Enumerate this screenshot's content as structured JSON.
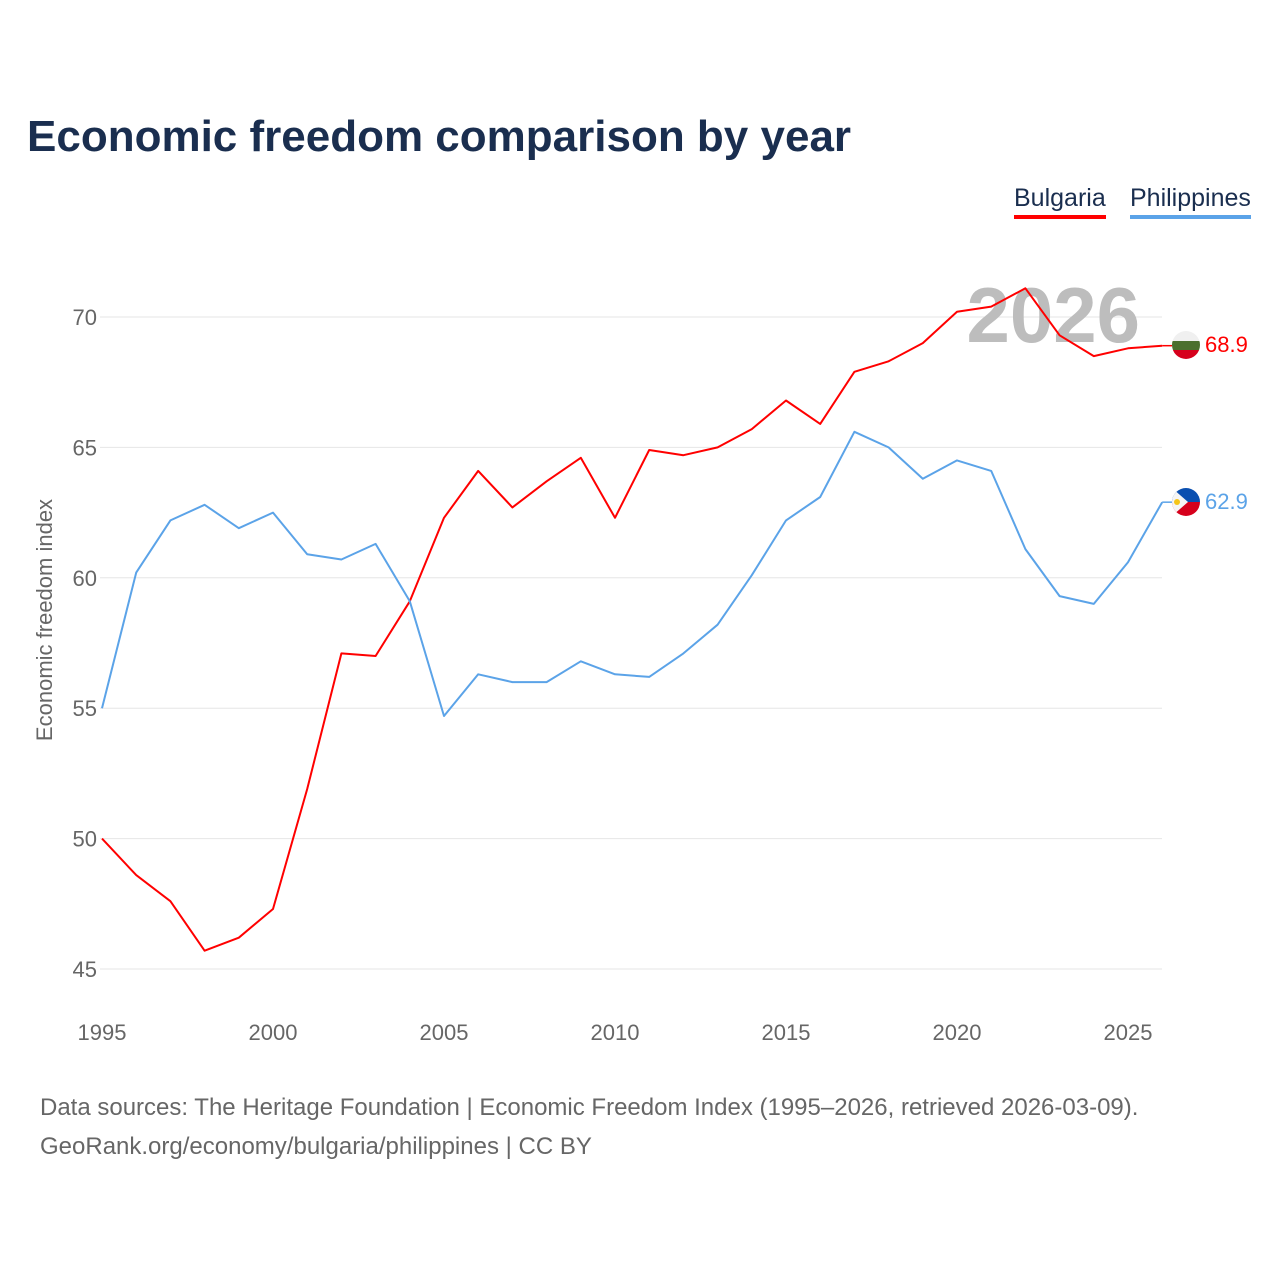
{
  "chart_data": {
    "type": "line",
    "title": "Economic freedom comparison by year",
    "xlabel": "",
    "ylabel": "Economic freedom index",
    "xlim": [
      1995,
      2026
    ],
    "ylim": [
      45,
      71.5
    ],
    "x_ticks": [
      1995,
      2000,
      2005,
      2010,
      2015,
      2020,
      2025
    ],
    "y_ticks": [
      45,
      50,
      55,
      60,
      65,
      70
    ],
    "grid": true,
    "legend_placement": "top-right",
    "watermark_year": "2026",
    "x": [
      1995,
      1996,
      1997,
      1998,
      1999,
      2000,
      2001,
      2002,
      2003,
      2004,
      2005,
      2006,
      2007,
      2008,
      2009,
      2010,
      2011,
      2012,
      2013,
      2014,
      2015,
      2016,
      2017,
      2018,
      2019,
      2020,
      2021,
      2022,
      2023,
      2024,
      2025,
      2026
    ],
    "series": [
      {
        "name": "Bulgaria",
        "color": "#ff0000",
        "end_label": "68.9",
        "values": [
          50.0,
          48.6,
          47.6,
          45.7,
          46.2,
          47.3,
          51.9,
          57.1,
          57.0,
          59.1,
          62.3,
          64.1,
          62.7,
          63.7,
          64.6,
          62.3,
          64.9,
          64.7,
          65.0,
          65.7,
          66.8,
          65.9,
          67.9,
          68.3,
          69.0,
          70.2,
          70.4,
          71.1,
          69.3,
          68.5,
          68.8,
          68.9
        ]
      },
      {
        "name": "Philippines",
        "color": "#5ba3e8",
        "end_label": "62.9",
        "values": [
          55.0,
          60.2,
          62.2,
          62.8,
          61.9,
          62.5,
          60.9,
          60.7,
          61.3,
          59.1,
          54.7,
          56.3,
          56.0,
          56.0,
          56.8,
          56.3,
          56.2,
          57.1,
          58.2,
          60.1,
          62.2,
          63.1,
          65.6,
          65.0,
          63.8,
          64.5,
          64.1,
          61.1,
          59.3,
          59.0,
          60.6,
          62.9
        ]
      }
    ]
  },
  "footer": {
    "line1": "Data sources: The Heritage Foundation | Economic Freedom Index (1995–2026, retrieved 2026-03-09).",
    "line2": "GeoRank.org/economy/bulgaria/philippines | CC BY"
  }
}
